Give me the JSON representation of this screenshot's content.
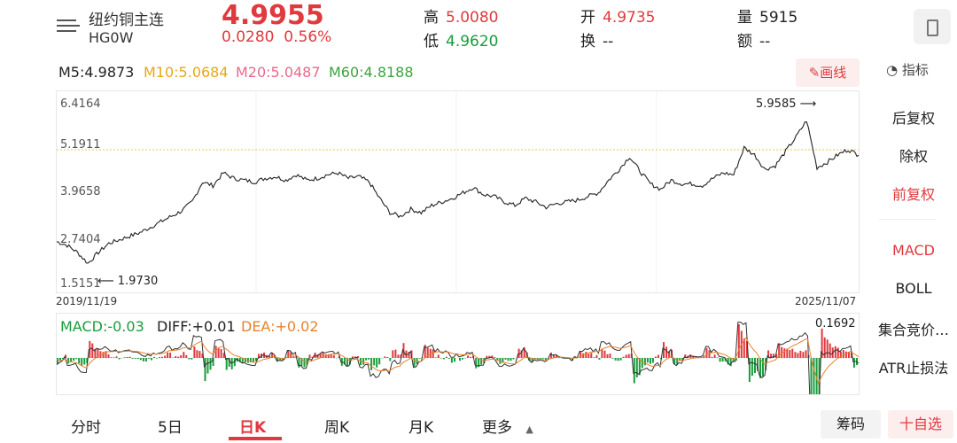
{
  "header": {
    "name": "纽约铜主连",
    "code": "HG0W",
    "price": "4.9955",
    "change": "0.0280",
    "change_pct": "0.56%",
    "high_label": "高",
    "high": "5.0080",
    "low_label": "低",
    "low": "4.9620",
    "open_label": "开",
    "open": "4.9735",
    "turnover_rate_label": "换",
    "turnover_rate": "--",
    "volume_label": "量",
    "volume": "5915",
    "amount_label": "额",
    "amount": "--"
  },
  "ma_legend": {
    "m5": "M5:4.9873",
    "m10": "M10:5.0684",
    "m20": "M20:5.0487",
    "m60": "M60:4.8188"
  },
  "toolbar": {
    "draw_label": "画线",
    "indicator_label": "指标"
  },
  "side_menu": [
    {
      "label": "后复权",
      "active": false
    },
    {
      "label": "除权",
      "active": false
    },
    {
      "label": "前复权",
      "active": true
    },
    {
      "label": "MACD",
      "active": true
    },
    {
      "label": "BOLL",
      "active": false
    },
    {
      "label": "集合竞价…",
      "active": false
    },
    {
      "label": "ATR止损法",
      "active": false
    }
  ],
  "main_chart": {
    "y_ticks": [
      "6.4164",
      "5.1911",
      "3.9658",
      "2.7404",
      "1.5151"
    ],
    "start_date": "2019/11/19",
    "end_date": "2025/11/07",
    "max_label": "5.9585",
    "min_label": "1.9730"
  },
  "macd_panel": {
    "macd": "MACD:-0.03",
    "diff": "DIFF:+0.01",
    "dea": "DEA:+0.02",
    "max_label": "0.1692"
  },
  "tabs": [
    {
      "label": "分时"
    },
    {
      "label": "5日"
    },
    {
      "label": "日K"
    },
    {
      "label": "周K"
    },
    {
      "label": "月K"
    },
    {
      "label": "更多"
    }
  ],
  "bottom_buttons": {
    "chips": "筹码",
    "add_watch": "十自选"
  },
  "colors": {
    "up": "#e0393e",
    "down": "#1a9c3c",
    "m10": "#e6a817",
    "m20": "#e86a8a",
    "m60": "#3fa23f"
  },
  "chart_data": {
    "type": "line",
    "xlim": [
      "2019/11/19",
      "2025/11/07"
    ],
    "ylim": [
      1.5151,
      6.4164
    ],
    "series": [
      {
        "values": [
          2.6,
          2.5,
          2.3,
          2.0,
          2.3,
          2.55,
          2.65,
          2.75,
          2.85,
          3.0,
          3.15,
          3.3,
          3.45,
          3.7,
          4.25,
          4.15,
          4.5,
          4.35,
          4.3,
          4.25,
          4.35,
          4.4,
          4.3,
          4.45,
          4.3,
          4.35,
          4.45,
          4.5,
          4.35,
          4.4,
          4.25,
          3.8,
          3.4,
          3.3,
          3.5,
          3.4,
          3.6,
          3.7,
          3.8,
          3.95,
          4.1,
          3.9,
          3.85,
          3.7,
          3.6,
          3.8,
          3.7,
          3.55,
          3.65,
          3.7,
          3.75,
          3.85,
          3.95,
          4.3,
          4.6,
          4.95,
          4.55,
          4.2,
          4.05,
          4.3,
          4.2,
          4.2,
          4.15,
          4.35,
          4.5,
          4.45,
          5.2,
          5.0,
          4.6,
          4.7,
          5.1,
          5.5,
          5.95,
          4.65,
          4.8,
          5.0,
          5.15,
          4.99
        ]
      }
    ]
  }
}
